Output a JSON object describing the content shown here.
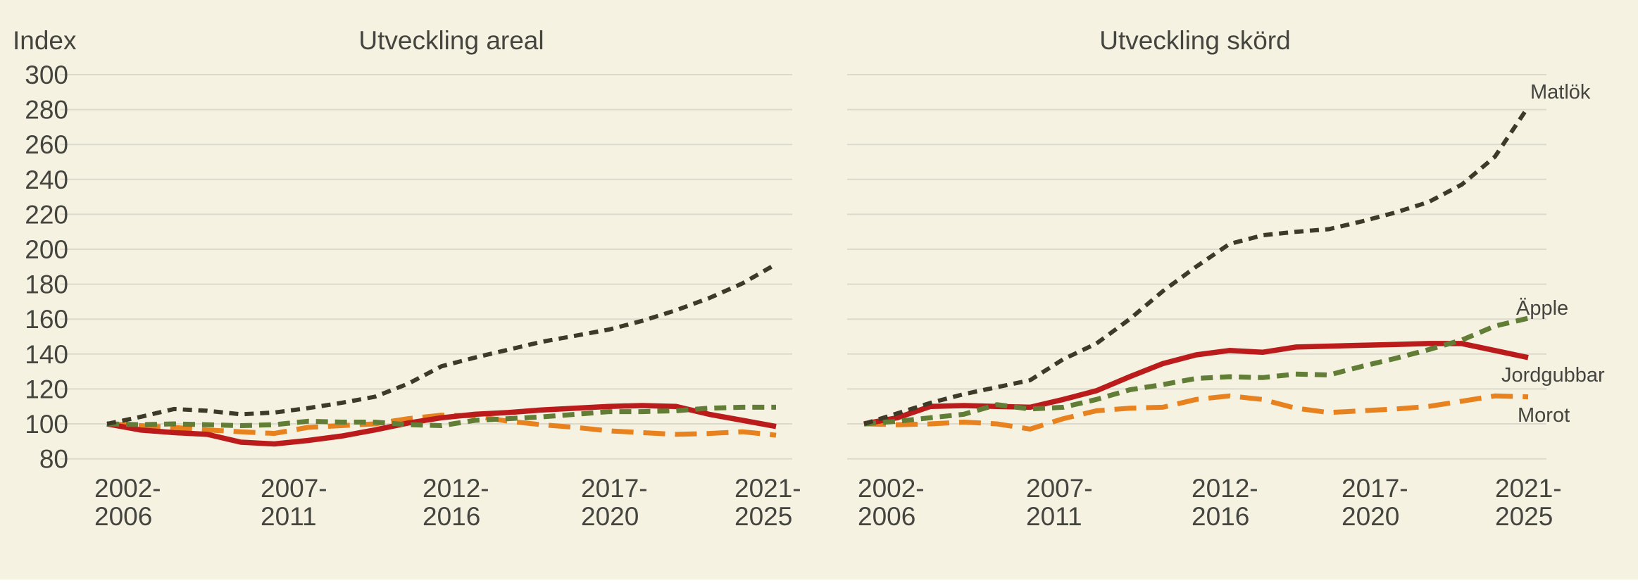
{
  "page": {
    "background_color": "#f5f2e2",
    "grid_color": "#dbdacc",
    "text_color": "#454540"
  },
  "y_axis": {
    "label": "Index",
    "ticks": [
      300,
      280,
      260,
      240,
      220,
      200,
      180,
      160,
      140,
      120,
      100,
      80
    ],
    "min": 80,
    "max": 300
  },
  "chart_data": [
    {
      "type": "line",
      "title": "Utveckling areal",
      "ylabel": "Index",
      "ylim": [
        80,
        300
      ],
      "grid": "horizontal",
      "x_points": [
        2002,
        2003,
        2004,
        2005,
        2006,
        2007,
        2008,
        2009,
        2010,
        2011,
        2012,
        2013,
        2014,
        2015,
        2016,
        2017,
        2018,
        2019,
        2020,
        2021,
        2022
      ],
      "x_tick_labels": [
        {
          "line1": "2002-",
          "line2": "2006"
        },
        {
          "line1": "2007-",
          "line2": "2011"
        },
        {
          "line1": "2012-",
          "line2": "2016"
        },
        {
          "line1": "2017-",
          "line2": "2020"
        },
        {
          "line1": "2021-",
          "line2": "2025"
        }
      ],
      "series": [
        {
          "name": "Matlök",
          "values": [
            100,
            104,
            108.5,
            107.5,
            105.5,
            106.5,
            109,
            112,
            115.5,
            123,
            133,
            138,
            142.5,
            147,
            150.5,
            154,
            159,
            165,
            172,
            180.5,
            191.5
          ]
        },
        {
          "name": "Äpple",
          "values": [
            100,
            99.5,
            100,
            99.5,
            99,
            99.5,
            101.5,
            101,
            101,
            99.5,
            99,
            102,
            103,
            104,
            105.5,
            107,
            107,
            107.5,
            109,
            109.5,
            109.5
          ]
        },
        {
          "name": "Jordgubbar",
          "values": [
            100,
            96.5,
            95,
            94,
            89.5,
            88.5,
            90.5,
            93,
            96.5,
            100.5,
            103.5,
            105.5,
            106.5,
            108,
            109,
            110,
            110.5,
            110,
            105.5,
            102,
            98.5
          ]
        },
        {
          "name": "Morot",
          "values": [
            100,
            99,
            98,
            96.5,
            95.5,
            94.5,
            98,
            99,
            100,
            103,
            105,
            104.5,
            101.5,
            99.5,
            98,
            96,
            95,
            94,
            94.5,
            95.5,
            93.5
          ]
        }
      ]
    },
    {
      "type": "line",
      "title": "Utveckling skörd",
      "ylabel": "Index",
      "ylim": [
        80,
        300
      ],
      "grid": "horizontal",
      "legend_position": "line-end-right",
      "x_points": [
        2002,
        2003,
        2004,
        2005,
        2006,
        2007,
        2008,
        2009,
        2010,
        2011,
        2012,
        2013,
        2014,
        2015,
        2016,
        2017,
        2018,
        2019,
        2020,
        2021,
        2022
      ],
      "x_tick_labels": [
        {
          "line1": "2002-",
          "line2": "2006"
        },
        {
          "line1": "2007-",
          "line2": "2011"
        },
        {
          "line1": "2012-",
          "line2": "2016"
        },
        {
          "line1": "2017-",
          "line2": "2020"
        },
        {
          "line1": "2021-",
          "line2": "2025"
        }
      ],
      "series": [
        {
          "name": "Matlök",
          "values": [
            100,
            106,
            112,
            117,
            121,
            125,
            137,
            146,
            160,
            176,
            190,
            203,
            208,
            210,
            211.5,
            216,
            221,
            227,
            237,
            253,
            281.5
          ]
        },
        {
          "name": "Äpple",
          "values": [
            100,
            101.5,
            103.5,
            105.5,
            111,
            108.5,
            109.5,
            114,
            119.5,
            122.5,
            126,
            127,
            126.5,
            128.5,
            128,
            133,
            137.5,
            142.5,
            148,
            156,
            160.5
          ]
        },
        {
          "name": "Jordgubbar",
          "values": [
            100,
            103.5,
            110,
            110.5,
            110,
            109.5,
            114,
            119,
            127,
            134.5,
            139.5,
            142,
            141,
            144,
            144.5,
            145,
            145.5,
            146,
            146,
            142,
            138
          ]
        },
        {
          "name": "Morot",
          "values": [
            100,
            99.5,
            100,
            101,
            100,
            97,
            103,
            107.5,
            109,
            109.5,
            114,
            116,
            114,
            109,
            106.5,
            107.5,
            108.5,
            110,
            113,
            116,
            115.5
          ]
        }
      ]
    }
  ],
  "series_styles": {
    "Matlök": {
      "color": "#3d3a27",
      "dash": "13 9",
      "width": 6
    },
    "Äpple": {
      "color": "#627d36",
      "dash": "17 10",
      "width": 7
    },
    "Jordgubbar": {
      "color": "#bb1b1b",
      "dash": "",
      "width": 7.5
    },
    "Morot": {
      "color": "#e8821f",
      "dash": "31 14",
      "width": 7
    }
  },
  "line_end_labels": [
    "Matlök",
    "Äpple",
    "Jordgubbar",
    "Morot"
  ]
}
